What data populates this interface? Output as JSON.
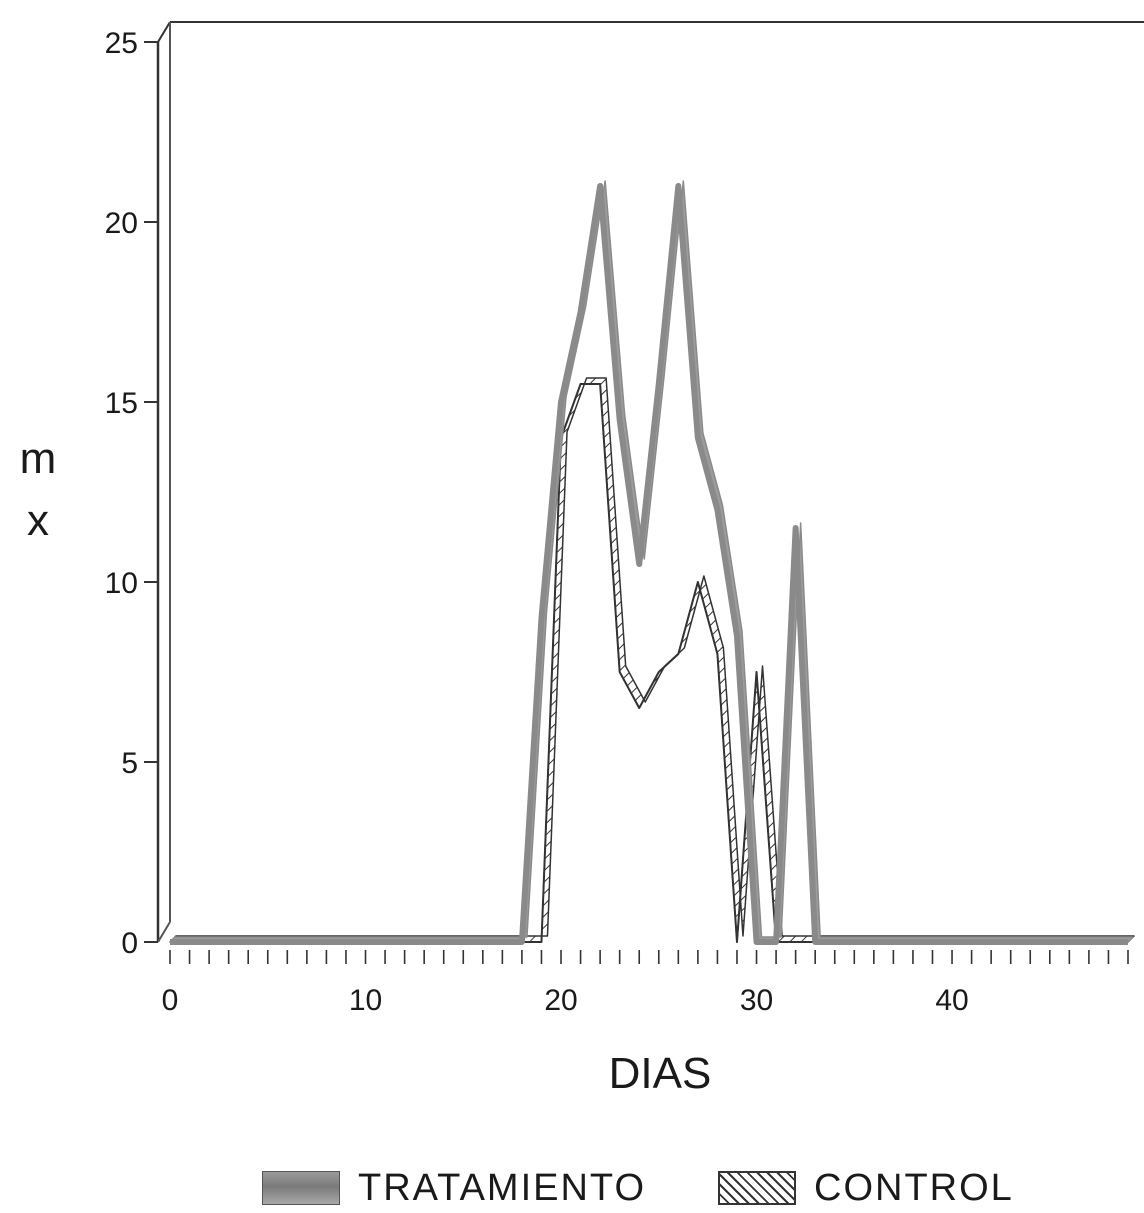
{
  "chart_data": {
    "type": "line",
    "xlabel": "DIAS",
    "ylabel": [
      "m",
      "x"
    ],
    "xlim": [
      0,
      49
    ],
    "ylim": [
      0,
      25
    ],
    "x_ticks": [
      "0",
      "10",
      "20",
      "30",
      "40"
    ],
    "y_ticks": [
      "0",
      "5",
      "10",
      "15",
      "20",
      "25"
    ],
    "x": [
      0,
      1,
      2,
      3,
      4,
      5,
      6,
      7,
      8,
      9,
      10,
      11,
      12,
      13,
      14,
      15,
      16,
      17,
      18,
      19,
      20,
      21,
      22,
      23,
      24,
      25,
      26,
      27,
      28,
      29,
      30,
      31,
      32,
      33,
      34,
      35,
      36,
      37,
      38,
      39,
      40,
      41,
      42,
      43,
      44,
      45,
      46,
      47,
      48,
      49
    ],
    "series": [
      {
        "name": "TRATAMIENTO",
        "color": "#8a8a8a",
        "values": [
          0,
          0,
          0,
          0,
          0,
          0,
          0,
          0,
          0,
          0,
          0,
          0,
          0,
          0,
          0,
          0,
          0,
          0,
          0,
          9,
          15,
          17.5,
          21,
          14.5,
          10.5,
          15.5,
          21,
          14,
          12,
          8.5,
          0,
          0,
          11.5,
          0,
          0,
          0,
          0,
          0,
          0,
          0,
          0,
          0,
          0,
          0,
          0,
          0,
          0,
          0,
          0,
          0
        ]
      },
      {
        "name": "CONTROL",
        "color": "#333333",
        "values": [
          0,
          0,
          0,
          0,
          0,
          0,
          0,
          0,
          0,
          0,
          0,
          0,
          0,
          0,
          0,
          0,
          0,
          0,
          0,
          0,
          14,
          15.5,
          15.5,
          7.5,
          6.5,
          7.5,
          8,
          10,
          8,
          0,
          7.5,
          0,
          0,
          0,
          0,
          0,
          0,
          0,
          0,
          0,
          0,
          0,
          0,
          0,
          0,
          0,
          0,
          0,
          0,
          0
        ]
      }
    ],
    "legend_position": "bottom",
    "grid": false
  }
}
